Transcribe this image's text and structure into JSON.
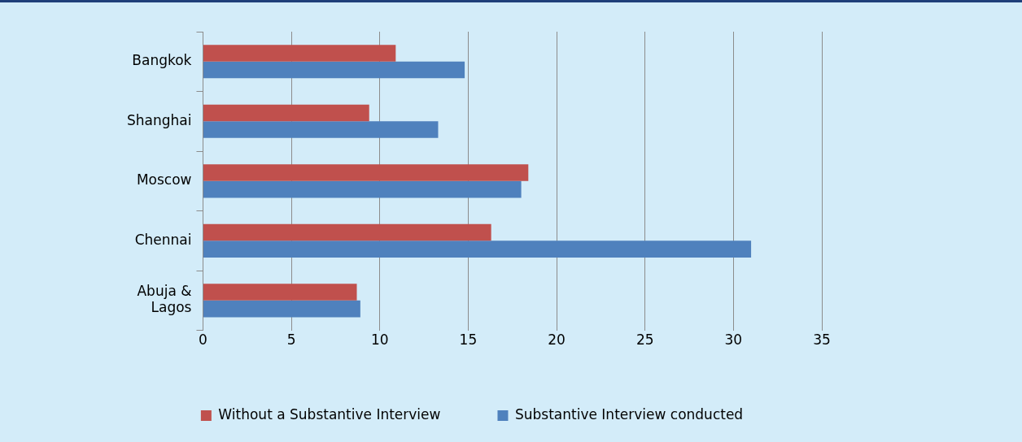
{
  "chart_data": {
    "type": "bar",
    "orientation": "horizontal",
    "categories": [
      "Bangkok",
      "Shanghai",
      "Moscow",
      "Chennai",
      "Abuja & Lagos"
    ],
    "series": [
      {
        "name": "Without a Substantive Interview",
        "color": "#c0504d",
        "values": [
          10.9,
          9.4,
          18.4,
          16.3,
          8.7
        ]
      },
      {
        "name": "Substantive Interview conducted",
        "color": "#4f81bd",
        "values": [
          14.8,
          13.3,
          18.0,
          31.0,
          8.9
        ]
      }
    ],
    "xlim": [
      0,
      35
    ],
    "xticks": [
      0,
      5,
      10,
      15,
      20,
      25,
      30,
      35
    ],
    "grid": "x",
    "legend": "bottom"
  }
}
